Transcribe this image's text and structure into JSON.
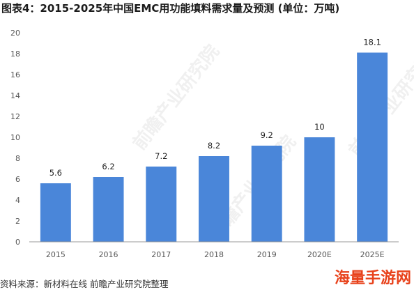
{
  "title": "图表4：2015-2025年中国EMC用功能填料需求量及预测 (单位：万吨)",
  "source": "资料来源：新材料在线 前瞻产业研究院整理",
  "brand": "海量手游网",
  "watermarks": [
    "前瞻产业研究院",
    "前瞻产业研究院",
    "前瞻产业研究院"
  ],
  "colors": {
    "bar": "#4a86d9",
    "axis": "#999999",
    "brand": "#e8421b"
  },
  "chart_data": {
    "type": "bar",
    "title": "图表4：2015-2025年中国EMC用功能填料需求量及预测 (单位：万吨)",
    "xlabel": "",
    "ylabel": "",
    "unit": "万吨",
    "categories": [
      "2015",
      "2016",
      "2017",
      "2018",
      "2019",
      "2020E",
      "2025E"
    ],
    "values": [
      5.6,
      6.2,
      7.2,
      8.2,
      9.2,
      10,
      18.1
    ],
    "value_labels": [
      "5.6",
      "6.2",
      "7.2",
      "8.2",
      "9.2",
      "10",
      "18.1"
    ],
    "ylim": [
      0,
      20
    ],
    "yticks": [
      0,
      2,
      4,
      6,
      8,
      10,
      12,
      14,
      16,
      18,
      20
    ],
    "grid": false,
    "legend": "none"
  }
}
